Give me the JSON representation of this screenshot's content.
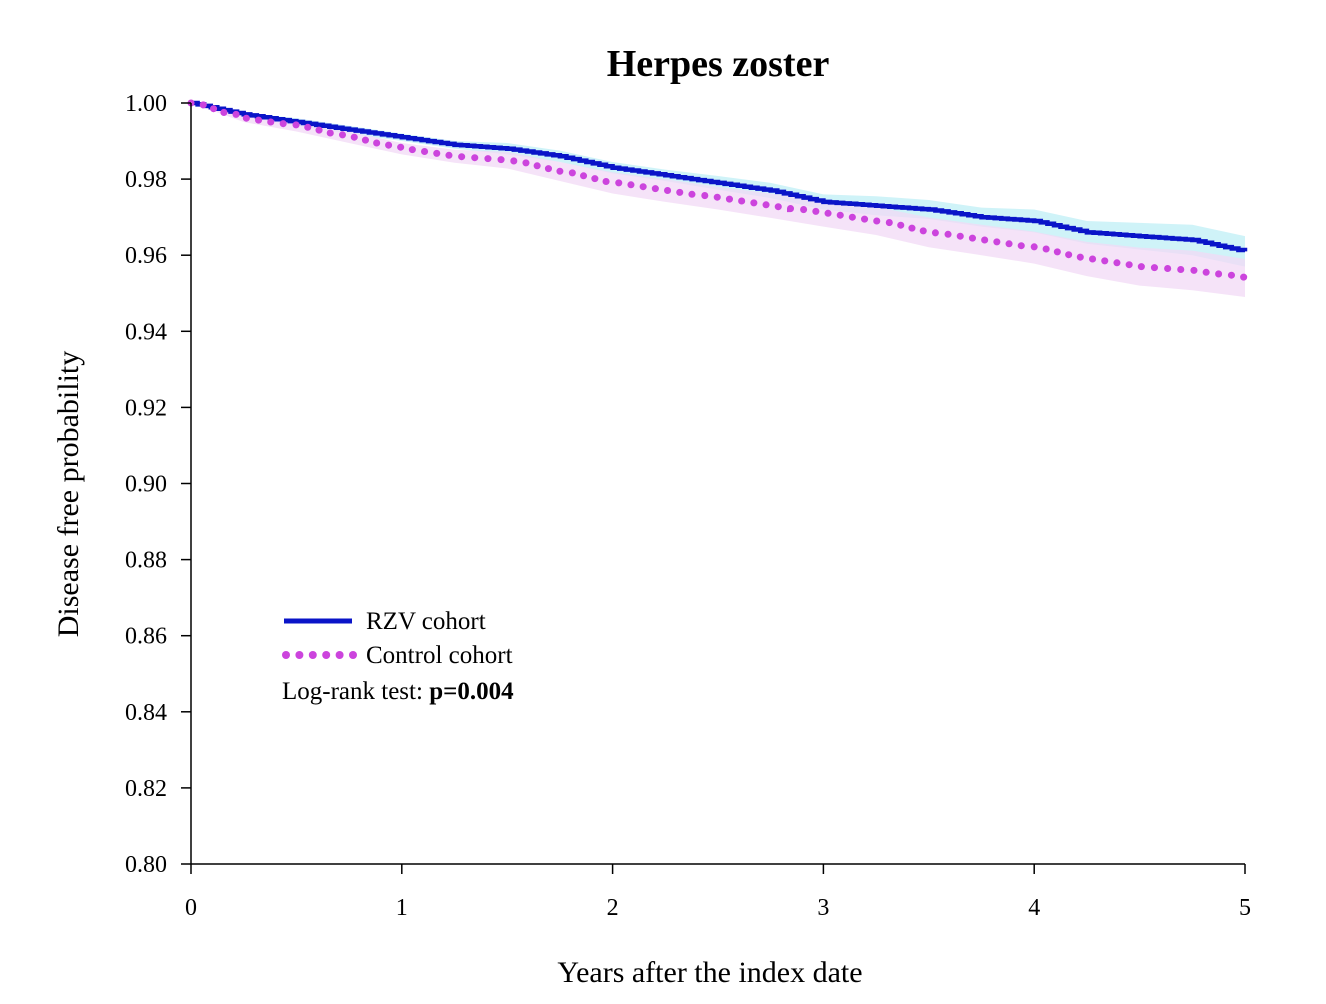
{
  "chart_data": {
    "type": "line",
    "title": "Herpes zoster",
    "xlabel": "Years after the index date",
    "ylabel": "Disease free probability",
    "xlim": [
      0,
      5
    ],
    "ylim": [
      0.8,
      1.0
    ],
    "x_ticks": [
      "0",
      "1",
      "2",
      "3",
      "4",
      "5"
    ],
    "y_ticks": [
      "0.80",
      "0.82",
      "0.84",
      "0.86",
      "0.88",
      "0.90",
      "0.92",
      "0.94",
      "0.96",
      "0.98",
      "1.00"
    ],
    "grid": false,
    "legend_position": "lower-left",
    "series": [
      {
        "name": "RZV cohort",
        "style": "solid",
        "color": "#0a14c8",
        "band_color": "#bfeff5",
        "x": [
          0,
          0.25,
          0.5,
          0.75,
          1.0,
          1.25,
          1.5,
          1.75,
          2.0,
          2.25,
          2.5,
          2.75,
          3.0,
          3.25,
          3.5,
          3.75,
          4.0,
          4.25,
          4.5,
          4.75,
          5.0
        ],
        "y": [
          1.0,
          0.997,
          0.995,
          0.993,
          0.991,
          0.989,
          0.988,
          0.986,
          0.983,
          0.981,
          0.979,
          0.977,
          0.974,
          0.973,
          0.972,
          0.97,
          0.969,
          0.966,
          0.965,
          0.964,
          0.961
        ],
        "ci_low": [
          1.0,
          0.9965,
          0.994,
          0.992,
          0.99,
          0.988,
          0.9865,
          0.9845,
          0.9815,
          0.9795,
          0.9772,
          0.975,
          0.972,
          0.9705,
          0.9695,
          0.9675,
          0.966,
          0.963,
          0.9615,
          0.96,
          0.957
        ],
        "ci_high": [
          1.0,
          0.9975,
          0.996,
          0.994,
          0.992,
          0.99,
          0.9895,
          0.9875,
          0.9845,
          0.9825,
          0.9808,
          0.979,
          0.976,
          0.9755,
          0.9745,
          0.9725,
          0.972,
          0.969,
          0.9685,
          0.968,
          0.965
        ]
      },
      {
        "name": "Control cohort",
        "style": "dotted",
        "color": "#cc44dd",
        "band_color": "#f2d9f6",
        "x": [
          0,
          0.25,
          0.5,
          0.75,
          1.0,
          1.25,
          1.5,
          1.75,
          2.0,
          2.25,
          2.5,
          2.75,
          3.0,
          3.25,
          3.5,
          3.75,
          4.0,
          4.25,
          4.5,
          4.75,
          5.0
        ],
        "y": [
          1.0,
          0.996,
          0.994,
          0.991,
          0.988,
          0.986,
          0.985,
          0.982,
          0.979,
          0.977,
          0.975,
          0.973,
          0.971,
          0.969,
          0.966,
          0.964,
          0.962,
          0.959,
          0.957,
          0.956,
          0.954
        ],
        "ci_low": [
          1.0,
          0.995,
          0.9925,
          0.9895,
          0.9865,
          0.9843,
          0.9828,
          0.9795,
          0.9762,
          0.974,
          0.972,
          0.9698,
          0.9675,
          0.9653,
          0.9621,
          0.96,
          0.9578,
          0.9545,
          0.952,
          0.9508,
          0.949
        ],
        "ci_high": [
          1.0,
          0.997,
          0.9955,
          0.9925,
          0.9895,
          0.9877,
          0.9872,
          0.9845,
          0.9818,
          0.98,
          0.978,
          0.9762,
          0.9745,
          0.9727,
          0.9699,
          0.968,
          0.9662,
          0.9635,
          0.962,
          0.9612,
          0.959
        ]
      }
    ],
    "annotation": {
      "label": "Log-rank test: ",
      "value": "p=0.004"
    }
  }
}
